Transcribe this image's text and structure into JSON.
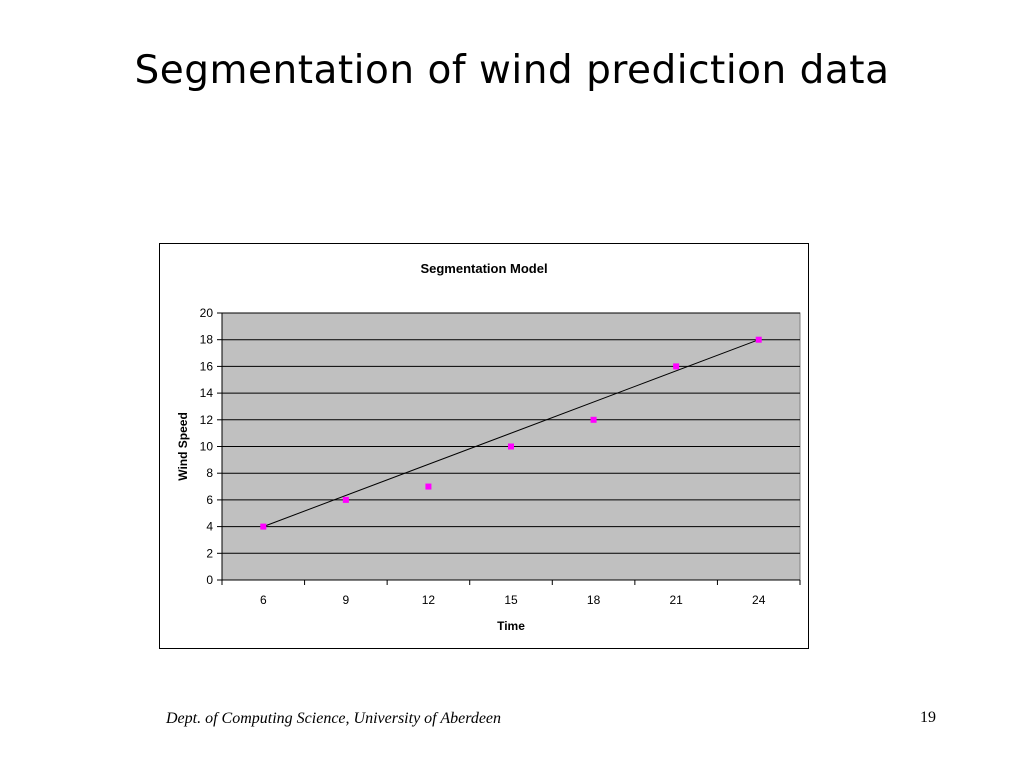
{
  "slide": {
    "title": "Segmentation of wind prediction data",
    "footer_dept": "Dept. of Computing Science, University of Aberdeen",
    "page_number": "19"
  },
  "chart_data": {
    "type": "scatter",
    "title": "Segmentation Model",
    "xlabel": "Time",
    "ylabel": "Wind Speed",
    "categories": [
      "6",
      "9",
      "12",
      "15",
      "18",
      "21",
      "24"
    ],
    "x": [
      6,
      9,
      12,
      15,
      18,
      21,
      24
    ],
    "series": [
      {
        "values": [
          4,
          6,
          7,
          10,
          12,
          16,
          18
        ],
        "color": "#ff00ff",
        "marker": "square"
      }
    ],
    "trendline": {
      "from": [
        6,
        4
      ],
      "to": [
        24,
        18
      ],
      "color": "#000000"
    },
    "ylim": [
      0,
      20
    ],
    "yticks": [
      0,
      2,
      4,
      6,
      8,
      10,
      12,
      14,
      16,
      18,
      20
    ],
    "grid": true,
    "legend": "none",
    "plot_background": "#c0c0c0"
  }
}
